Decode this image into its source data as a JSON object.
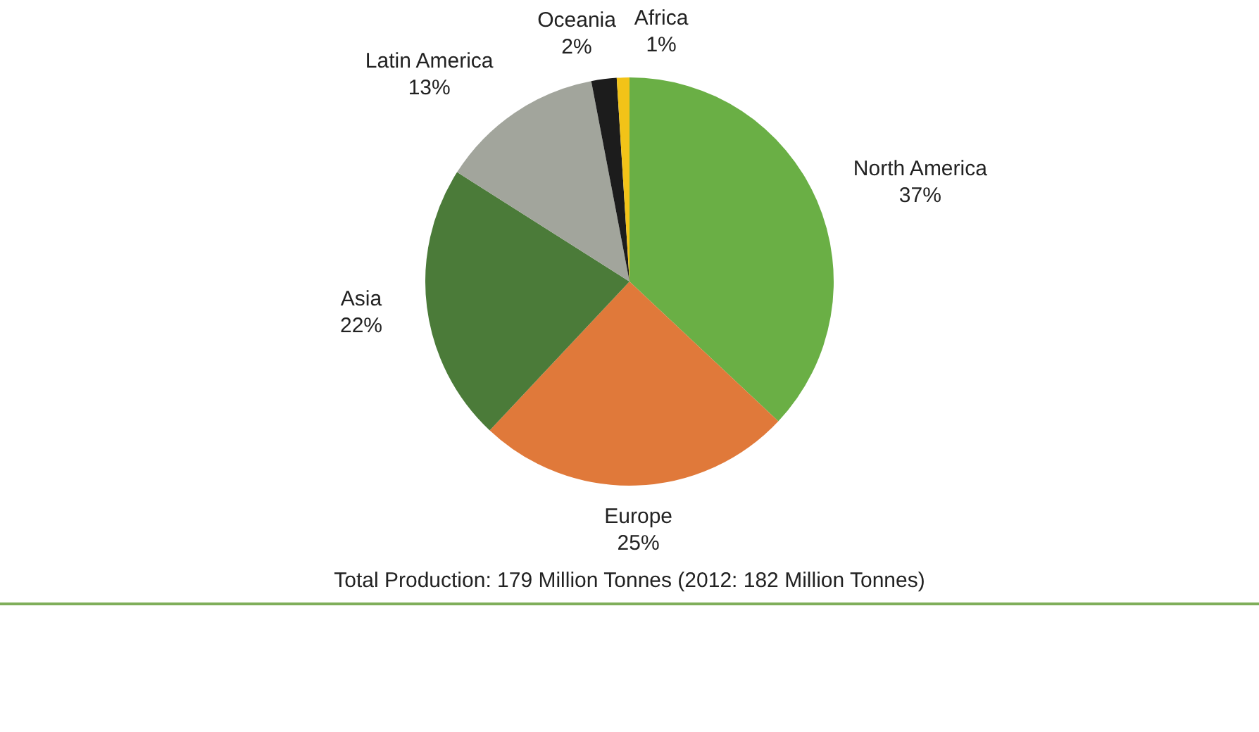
{
  "chart_data": {
    "type": "pie",
    "categories": [
      "North America",
      "Europe",
      "Asia",
      "Latin America",
      "Oceania",
      "Africa"
    ],
    "values": [
      37,
      25,
      22,
      13,
      2,
      1
    ],
    "colors": [
      "#6aaf45",
      "#e0793a",
      "#4b7b39",
      "#a2a59c",
      "#1c1c1c",
      "#f2c318"
    ],
    "value_labels": [
      "37%",
      "25%",
      "22%",
      "13%",
      "2%",
      "1%"
    ],
    "legend": false,
    "annotations": [
      "Total Production: 179 Million Tonnes (2012: 182 Million Tonnes)"
    ]
  }
}
